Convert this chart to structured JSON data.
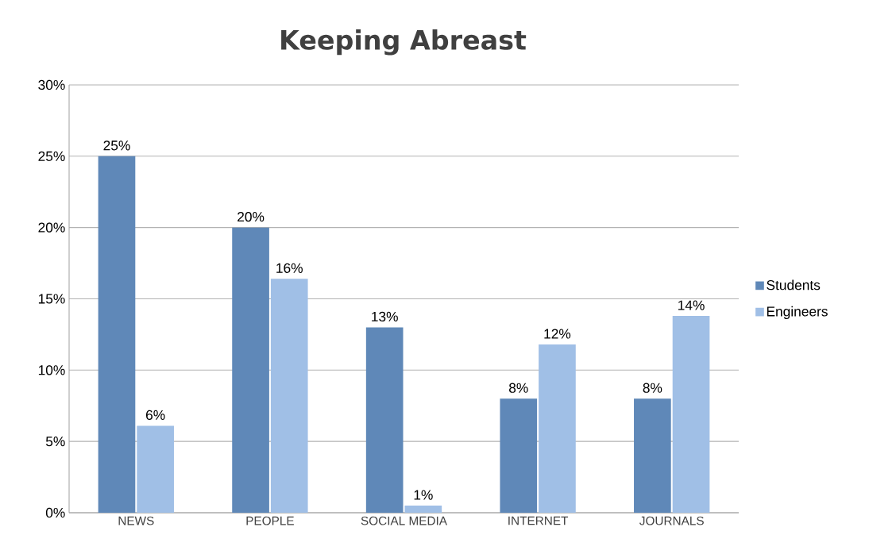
{
  "chart_data": {
    "type": "bar",
    "title": "Keeping Abreast",
    "categories": [
      "NEWS",
      "PEOPLE",
      "SOCIAL MEDIA",
      "INTERNET",
      "JOURNALS"
    ],
    "series": [
      {
        "name": "Students",
        "color": "#5f88b8",
        "values": [
          25,
          20,
          13,
          8,
          8
        ],
        "value_labels": [
          "25%",
          "20%",
          "13%",
          "8%",
          "8%"
        ]
      },
      {
        "name": "Engineers",
        "color": "#a0bfe6",
        "values": [
          6.1,
          16.4,
          0.5,
          11.8,
          13.8
        ],
        "value_labels": [
          "6%",
          "16%",
          "1%",
          "12%",
          "14%"
        ]
      }
    ],
    "ylim": [
      0,
      30
    ],
    "yticks": [
      {
        "value": 0,
        "label": "0%"
      },
      {
        "value": 5,
        "label": "5%"
      },
      {
        "value": 10,
        "label": "10%"
      },
      {
        "value": 15,
        "label": "15%"
      },
      {
        "value": 20,
        "label": "20%"
      },
      {
        "value": 25,
        "label": "25%"
      },
      {
        "value": 30,
        "label": "30%"
      }
    ],
    "grid": "y",
    "legend": "right"
  }
}
